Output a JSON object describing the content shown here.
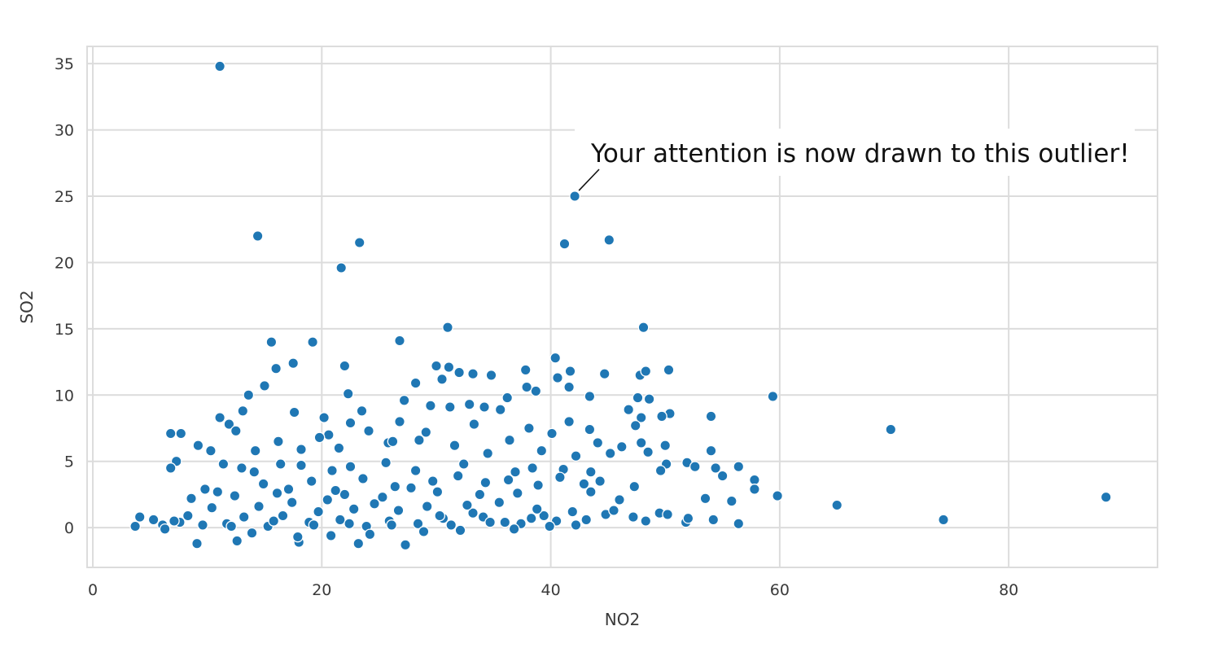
{
  "chart_data": {
    "type": "scatter",
    "title": "",
    "xlabel": "NO2",
    "ylabel": "SO2",
    "xlim": [
      -0.5,
      93
    ],
    "ylim": [
      -3,
      36.3
    ],
    "grid": true,
    "xticks": [
      0,
      20,
      40,
      60,
      80
    ],
    "yticks": [
      0,
      5,
      10,
      15,
      20,
      25,
      30,
      35
    ],
    "marker_color": "#1f77b4",
    "marker_edge_color": "#ffffff",
    "grid_color": "#dcdcdc",
    "annotation": {
      "text": "Your attention is now drawn to this outlier!",
      "point": [
        42.1,
        25.0
      ]
    },
    "points": [
      [
        11.1,
        34.8
      ],
      [
        42.1,
        25.0
      ],
      [
        14.4,
        22.0
      ],
      [
        23.3,
        21.5
      ],
      [
        45.1,
        21.7
      ],
      [
        41.2,
        21.4
      ],
      [
        21.7,
        19.6
      ],
      [
        31.0,
        15.1
      ],
      [
        48.1,
        15.1
      ],
      [
        15.6,
        14.0
      ],
      [
        19.2,
        14.0
      ],
      [
        26.8,
        14.1
      ],
      [
        17.5,
        12.4
      ],
      [
        22.0,
        12.2
      ],
      [
        16.0,
        12.0
      ],
      [
        30.0,
        12.2
      ],
      [
        31.1,
        12.1
      ],
      [
        37.8,
        11.9
      ],
      [
        40.4,
        12.8
      ],
      [
        41.7,
        11.8
      ],
      [
        44.7,
        11.6
      ],
      [
        47.8,
        11.5
      ],
      [
        48.3,
        11.8
      ],
      [
        50.3,
        11.9
      ],
      [
        40.6,
        11.3
      ],
      [
        34.8,
        11.5
      ],
      [
        32.0,
        11.7
      ],
      [
        30.5,
        11.2
      ],
      [
        33.2,
        11.6
      ],
      [
        15.0,
        10.7
      ],
      [
        28.2,
        10.9
      ],
      [
        13.6,
        10.0
      ],
      [
        22.3,
        10.1
      ],
      [
        27.2,
        9.6
      ],
      [
        38.7,
        10.3
      ],
      [
        43.4,
        9.9
      ],
      [
        47.6,
        9.8
      ],
      [
        48.6,
        9.7
      ],
      [
        59.4,
        9.9
      ],
      [
        36.2,
        9.8
      ],
      [
        37.9,
        10.6
      ],
      [
        41.6,
        10.6
      ],
      [
        29.5,
        9.2
      ],
      [
        31.2,
        9.1
      ],
      [
        32.9,
        9.3
      ],
      [
        34.2,
        9.1
      ],
      [
        35.6,
        8.9
      ],
      [
        23.5,
        8.8
      ],
      [
        13.1,
        8.8
      ],
      [
        17.6,
        8.7
      ],
      [
        46.8,
        8.9
      ],
      [
        50.4,
        8.6
      ],
      [
        49.7,
        8.4
      ],
      [
        54.0,
        8.4
      ],
      [
        47.9,
        8.3
      ],
      [
        11.1,
        8.3
      ],
      [
        20.2,
        8.3
      ],
      [
        22.5,
        7.9
      ],
      [
        26.8,
        8.0
      ],
      [
        41.6,
        8.0
      ],
      [
        29.1,
        7.2
      ],
      [
        33.3,
        7.8
      ],
      [
        38.1,
        7.5
      ],
      [
        43.4,
        7.4
      ],
      [
        47.4,
        7.7
      ],
      [
        69.7,
        7.4
      ],
      [
        11.9,
        7.8
      ],
      [
        12.5,
        7.3
      ],
      [
        6.8,
        7.1
      ],
      [
        7.7,
        7.1
      ],
      [
        20.6,
        7.0
      ],
      [
        24.1,
        7.3
      ],
      [
        16.2,
        6.5
      ],
      [
        19.8,
        6.8
      ],
      [
        25.8,
        6.4
      ],
      [
        28.5,
        6.6
      ],
      [
        36.4,
        6.6
      ],
      [
        40.1,
        7.1
      ],
      [
        44.1,
        6.4
      ],
      [
        46.2,
        6.1
      ],
      [
        47.9,
        6.4
      ],
      [
        50.0,
        6.2
      ],
      [
        9.2,
        6.2
      ],
      [
        10.3,
        5.8
      ],
      [
        14.2,
        5.8
      ],
      [
        18.2,
        5.9
      ],
      [
        21.5,
        6.0
      ],
      [
        26.2,
        6.5
      ],
      [
        31.6,
        6.2
      ],
      [
        34.5,
        5.6
      ],
      [
        39.2,
        5.8
      ],
      [
        42.2,
        5.4
      ],
      [
        45.2,
        5.6
      ],
      [
        48.5,
        5.7
      ],
      [
        54.0,
        5.8
      ],
      [
        50.1,
        4.8
      ],
      [
        51.9,
        4.9
      ],
      [
        52.6,
        4.6
      ],
      [
        54.4,
        4.5
      ],
      [
        56.4,
        4.6
      ],
      [
        7.3,
        5.0
      ],
      [
        6.8,
        4.5
      ],
      [
        11.4,
        4.8
      ],
      [
        13.0,
        4.5
      ],
      [
        14.1,
        4.2
      ],
      [
        16.4,
        4.8
      ],
      [
        18.2,
        4.7
      ],
      [
        20.9,
        4.3
      ],
      [
        22.5,
        4.6
      ],
      [
        25.6,
        4.9
      ],
      [
        28.2,
        4.3
      ],
      [
        32.4,
        4.8
      ],
      [
        36.9,
        4.2
      ],
      [
        38.4,
        4.5
      ],
      [
        41.1,
        4.4
      ],
      [
        43.5,
        4.2
      ],
      [
        47.3,
        3.1
      ],
      [
        49.6,
        4.3
      ],
      [
        55.0,
        3.9
      ],
      [
        57.8,
        3.6
      ],
      [
        10.9,
        2.7
      ],
      [
        12.4,
        2.4
      ],
      [
        17.1,
        2.9
      ],
      [
        22.0,
        2.5
      ],
      [
        25.3,
        2.3
      ],
      [
        27.8,
        3.0
      ],
      [
        30.1,
        2.7
      ],
      [
        33.8,
        2.5
      ],
      [
        37.1,
        2.6
      ],
      [
        43.5,
        2.7
      ],
      [
        46.0,
        2.1
      ],
      [
        53.5,
        2.2
      ],
      [
        55.8,
        2.0
      ],
      [
        57.8,
        2.9
      ],
      [
        59.8,
        2.4
      ],
      [
        65.0,
        1.7
      ],
      [
        88.5,
        2.3
      ],
      [
        74.3,
        0.6
      ],
      [
        56.4,
        0.3
      ],
      [
        54.2,
        0.6
      ],
      [
        51.8,
        0.4
      ],
      [
        49.5,
        1.1
      ],
      [
        47.2,
        0.8
      ],
      [
        44.8,
        1.0
      ],
      [
        42.2,
        0.2
      ],
      [
        39.4,
        0.9
      ],
      [
        36.0,
        0.4
      ],
      [
        33.2,
        1.1
      ],
      [
        30.6,
        0.7
      ],
      [
        27.3,
        -1.3
      ],
      [
        23.2,
        -1.2
      ],
      [
        18.0,
        -1.1
      ],
      [
        12.6,
        -1.0
      ],
      [
        9.1,
        -1.2
      ],
      [
        3.7,
        0.1
      ],
      [
        4.1,
        0.8
      ],
      [
        5.3,
        0.6
      ],
      [
        6.1,
        0.2
      ],
      [
        7.6,
        0.4
      ],
      [
        8.3,
        0.9
      ],
      [
        9.6,
        0.2
      ],
      [
        10.4,
        1.5
      ],
      [
        11.7,
        0.3
      ],
      [
        13.2,
        0.8
      ],
      [
        14.5,
        1.6
      ],
      [
        15.3,
        0.1
      ],
      [
        16.6,
        0.9
      ],
      [
        17.4,
        1.9
      ],
      [
        18.9,
        0.4
      ],
      [
        19.7,
        1.2
      ],
      [
        20.5,
        2.1
      ],
      [
        21.6,
        0.6
      ],
      [
        22.8,
        1.4
      ],
      [
        23.9,
        0.1
      ],
      [
        24.6,
        1.8
      ],
      [
        25.9,
        0.5
      ],
      [
        26.7,
        1.3
      ],
      [
        28.4,
        0.3
      ],
      [
        29.2,
        1.6
      ],
      [
        31.3,
        0.2
      ],
      [
        32.7,
        1.7
      ],
      [
        34.1,
        0.8
      ],
      [
        35.5,
        1.9
      ],
      [
        37.4,
        0.3
      ],
      [
        38.8,
        1.4
      ],
      [
        40.5,
        0.5
      ],
      [
        41.9,
        1.2
      ],
      [
        43.1,
        0.6
      ],
      [
        45.5,
        1.3
      ],
      [
        48.3,
        0.5
      ],
      [
        50.2,
        1.0
      ],
      [
        52.0,
        0.7
      ],
      [
        6.3,
        -0.1
      ],
      [
        7.1,
        0.5
      ],
      [
        12.1,
        0.1
      ],
      [
        13.9,
        -0.4
      ],
      [
        15.8,
        0.5
      ],
      [
        17.9,
        -0.7
      ],
      [
        19.3,
        0.2
      ],
      [
        20.8,
        -0.6
      ],
      [
        22.4,
        0.3
      ],
      [
        24.2,
        -0.5
      ],
      [
        26.1,
        0.2
      ],
      [
        28.9,
        -0.3
      ],
      [
        30.3,
        0.9
      ],
      [
        32.1,
        -0.2
      ],
      [
        34.7,
        0.4
      ],
      [
        36.8,
        -0.1
      ],
      [
        38.3,
        0.7
      ],
      [
        39.9,
        0.1
      ],
      [
        8.6,
        2.2
      ],
      [
        9.8,
        2.9
      ],
      [
        14.9,
        3.3
      ],
      [
        16.1,
        2.6
      ],
      [
        19.1,
        3.5
      ],
      [
        21.2,
        2.8
      ],
      [
        23.6,
        3.7
      ],
      [
        26.4,
        3.1
      ],
      [
        29.7,
        3.5
      ],
      [
        31.9,
        3.9
      ],
      [
        34.3,
        3.4
      ],
      [
        36.3,
        3.6
      ],
      [
        38.9,
        3.2
      ],
      [
        40.8,
        3.8
      ],
      [
        42.9,
        3.3
      ],
      [
        44.3,
        3.5
      ]
    ]
  }
}
